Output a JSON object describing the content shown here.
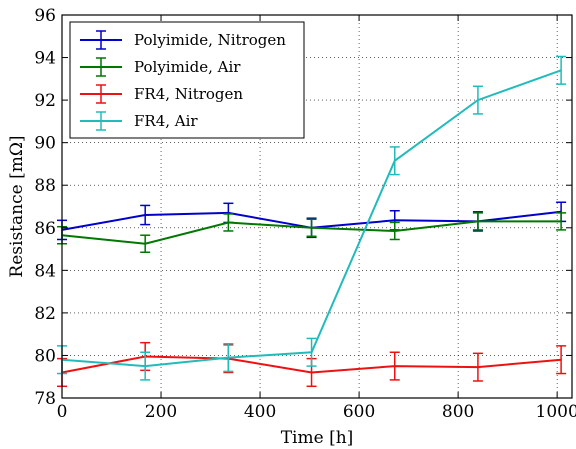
{
  "chart_data": {
    "type": "line",
    "xlabel": "Time [h]",
    "ylabel": "Resistance [mΩ]",
    "xlim": [
      0,
      1030
    ],
    "ylim": [
      78,
      96
    ],
    "xticks": [
      0,
      200,
      400,
      600,
      800,
      1000
    ],
    "yticks": [
      78,
      80,
      82,
      84,
      86,
      88,
      90,
      92,
      94,
      96
    ],
    "grid": "dotted",
    "legend_position": "top-left",
    "series": [
      {
        "name": "Polyimide, Nitrogen",
        "color": "#0000cc",
        "x": [
          0,
          168,
          336,
          504,
          672,
          840,
          1008
        ],
        "y": [
          85.9,
          86.6,
          86.7,
          86.0,
          86.35,
          86.3,
          86.75
        ],
        "err": [
          0.45,
          0.45,
          0.45,
          0.45,
          0.45,
          0.45,
          0.45
        ]
      },
      {
        "name": "Polyimide, Air",
        "color": "#007700",
        "x": [
          0,
          168,
          336,
          504,
          672,
          840,
          1008
        ],
        "y": [
          85.65,
          85.25,
          86.25,
          86.0,
          85.85,
          86.3,
          86.3
        ],
        "err": [
          0.4,
          0.4,
          0.4,
          0.4,
          0.4,
          0.4,
          0.4
        ]
      },
      {
        "name": "FR4, Nitrogen",
        "color": "#ee1111",
        "x": [
          0,
          168,
          336,
          504,
          672,
          840,
          1008
        ],
        "y": [
          79.2,
          79.95,
          79.85,
          79.2,
          79.5,
          79.45,
          79.8
        ],
        "err": [
          0.65,
          0.65,
          0.65,
          0.65,
          0.65,
          0.65,
          0.65
        ]
      },
      {
        "name": "FR4, Air",
        "color": "#22bbbb",
        "x": [
          0,
          168,
          336,
          504,
          672,
          840,
          1008
        ],
        "y": [
          79.8,
          79.5,
          79.9,
          80.15,
          89.15,
          92.0,
          93.4
        ],
        "err": [
          0.65,
          0.65,
          0.65,
          0.65,
          0.65,
          0.65,
          0.65
        ]
      }
    ]
  }
}
